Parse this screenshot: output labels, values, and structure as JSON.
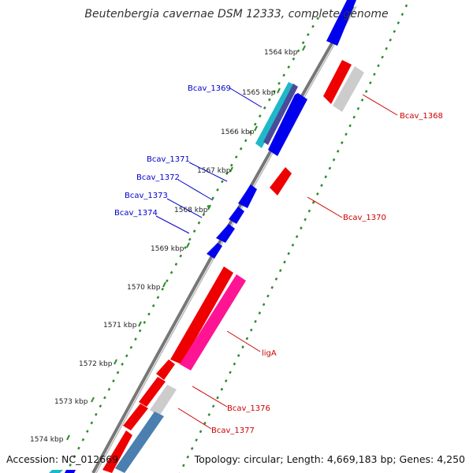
{
  "title": "Beutenbergia cavernae DSM 12333, complete genome",
  "accession": "Accession: NC_012669",
  "topology": "Topology: circular; Length: 4,669,183 bp; Genes: 4,250",
  "kbp_ticks": [
    "1564 kbp",
    "1565 kbp",
    "1566 kbp",
    "1567 kbp",
    "1568 kbp",
    "1569 kbp",
    "1570 kbp",
    "1571 kbp",
    "1572 kbp",
    "1573 kbp",
    "1574 kbp"
  ],
  "gene_labels": {
    "bcav_1368": "Bcav_1368",
    "bcav_1369": "Bcav_1369",
    "bcav_1370": "Bcav_1370",
    "bcav_1371": "Bcav_1371",
    "bcav_1372": "Bcav_1372",
    "bcav_1373": "Bcav_1373",
    "bcav_1374": "Bcav_1374",
    "liga": "ligA",
    "bcav_1376": "Bcav_1376",
    "bcav_1377": "Bcav_1377"
  },
  "colors": {
    "forward_cds": "#0000ee",
    "reverse_cds": "#ee0000",
    "rna": "#aaaaaa",
    "highlight": "#ff1493",
    "teal": "#1fb8c8",
    "steel": "#4a7fb0",
    "backbone": "#777777",
    "tick": "#2e8b2e"
  }
}
